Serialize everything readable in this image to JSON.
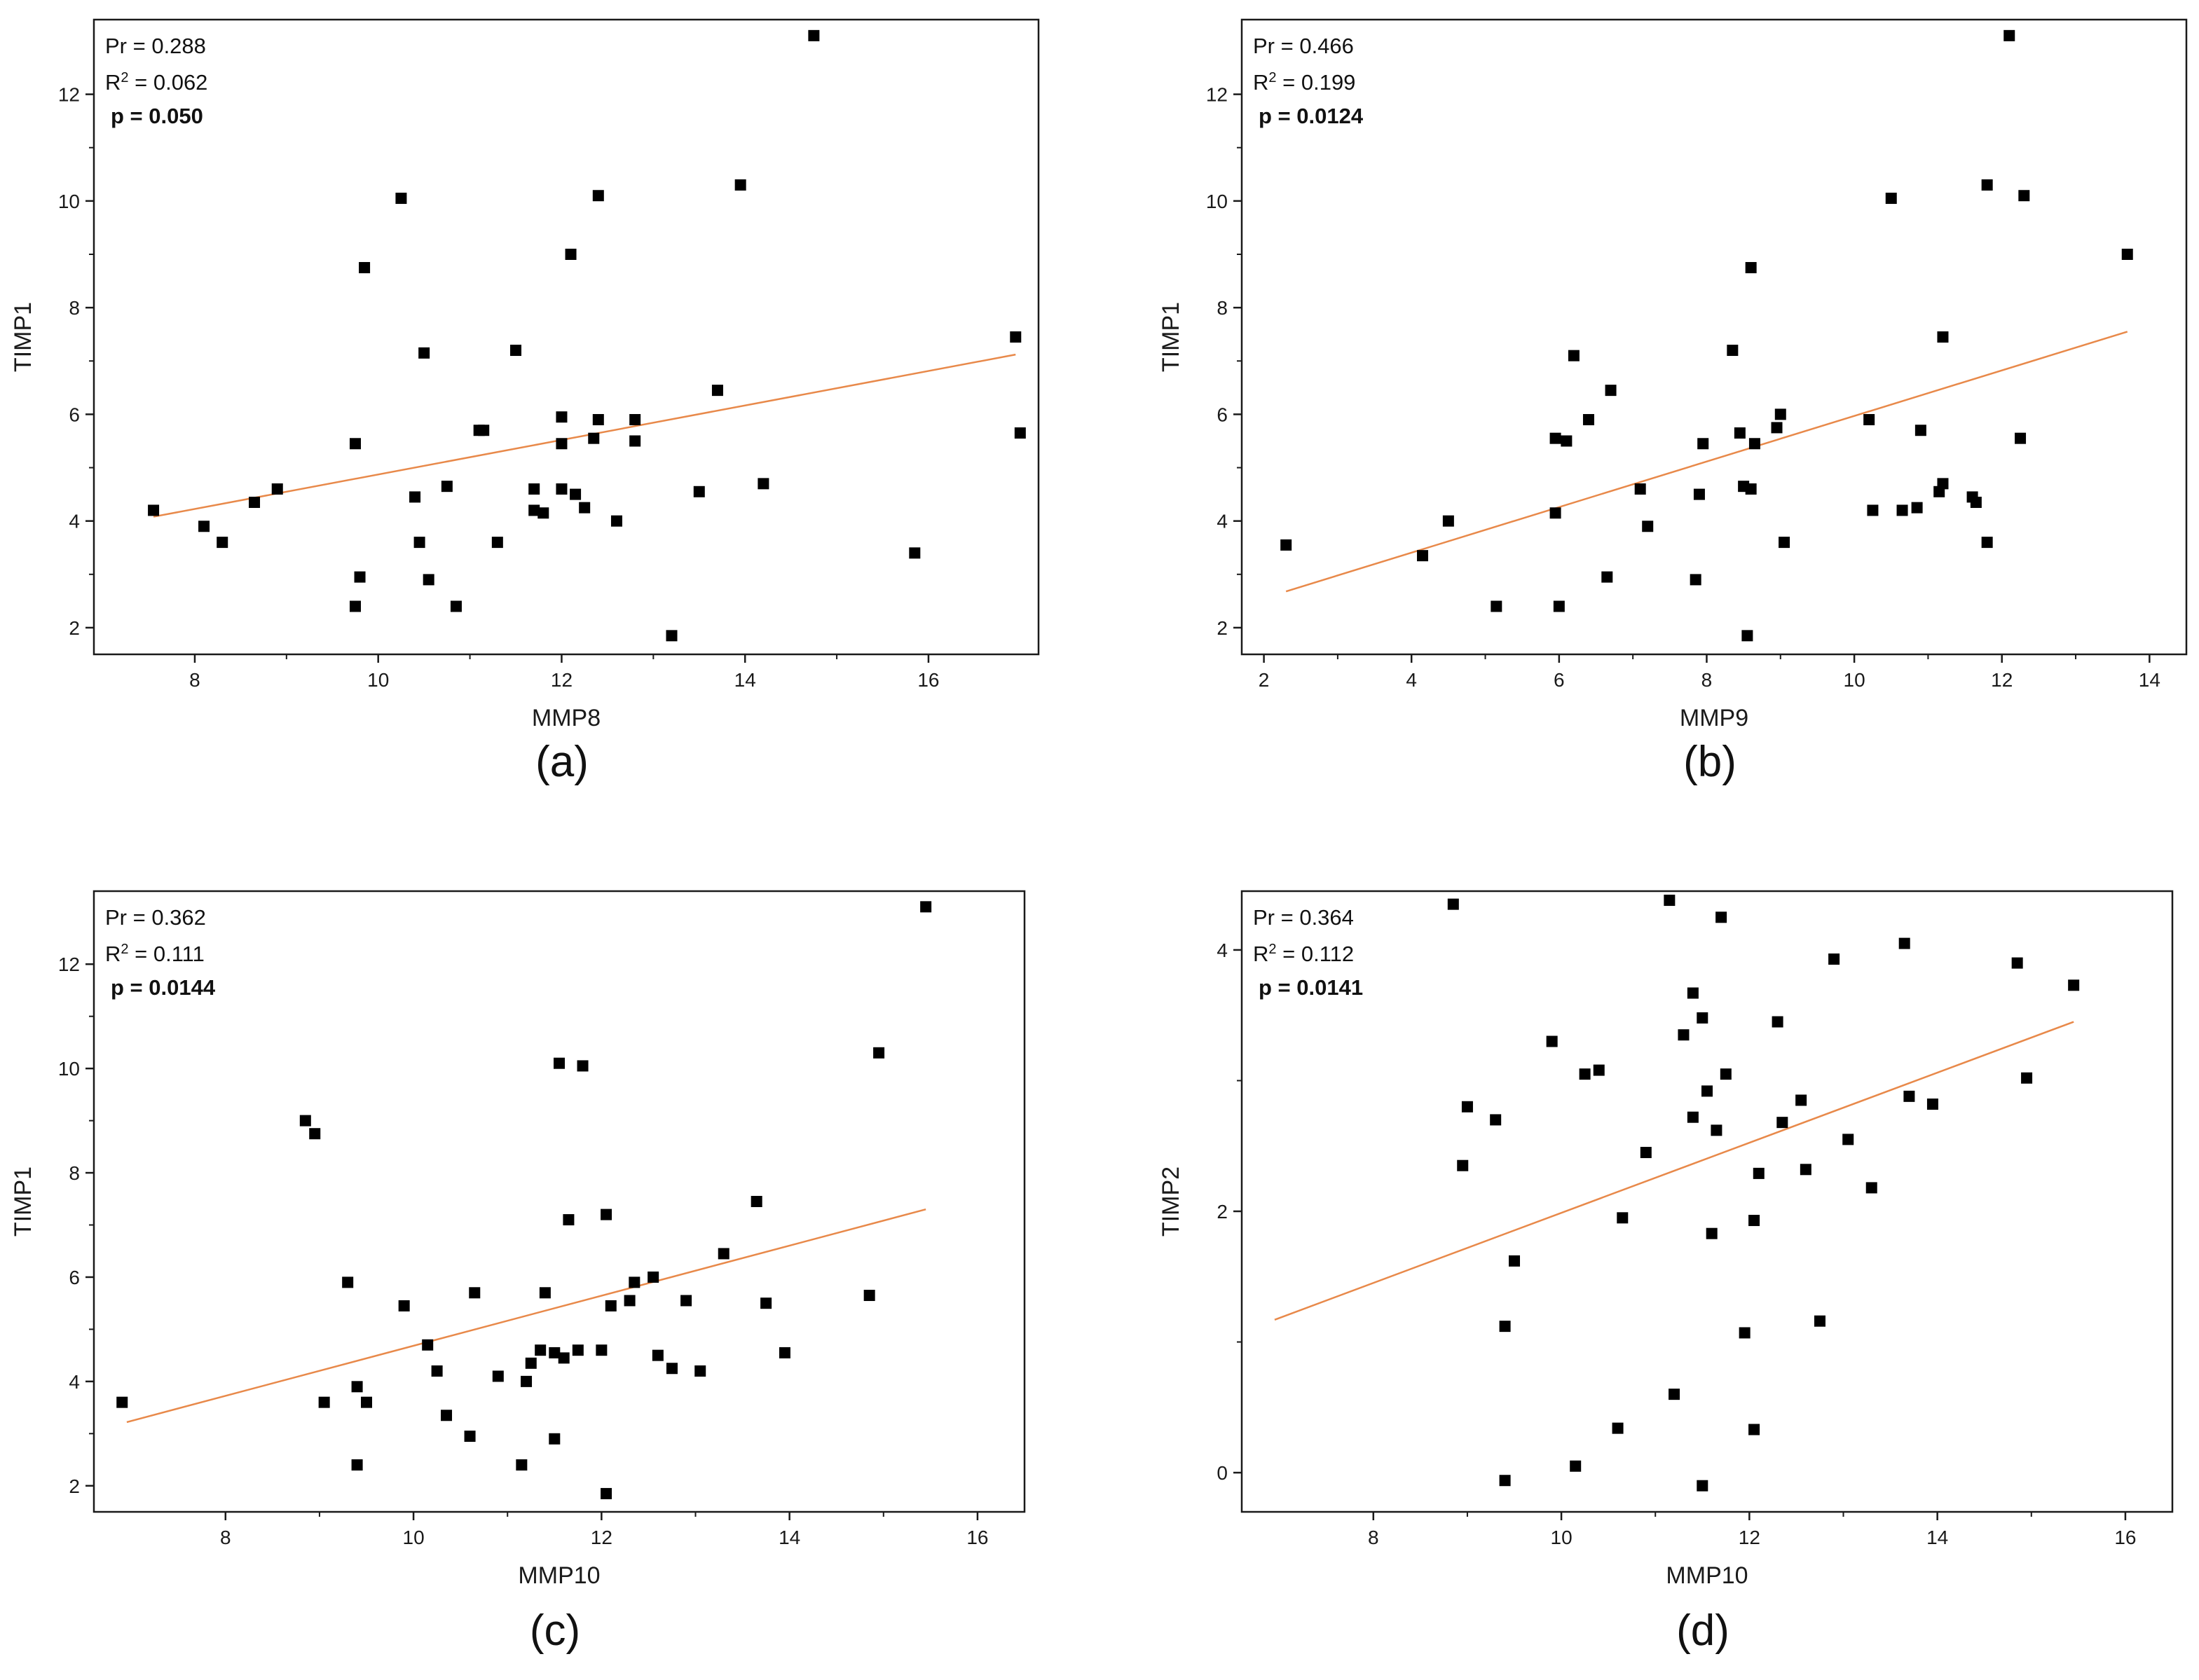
{
  "figure": {
    "colors": {
      "marker": "#000000",
      "fit_line": "#e8894a",
      "axis": "#1a1a1a"
    }
  },
  "chart_data": [
    {
      "id": "a",
      "type": "scatter",
      "panel_label": "(a)",
      "xlabel": "MMP8",
      "ylabel": "TIMP1",
      "xlim": [
        6.9,
        17.2
      ],
      "ylim": [
        1.5,
        13.4
      ],
      "xticks": [
        8,
        10,
        12,
        14,
        16
      ],
      "yticks": [
        2,
        4,
        6,
        8,
        10,
        12
      ],
      "stats": {
        "pr": "Pr = 0.288",
        "r2_prefix": "R",
        "r2_sup": "2",
        "r2_value": " = 0.062",
        "p": "p = 0.050"
      },
      "fit": {
        "x": [
          7.55,
          16.95
        ],
        "y": [
          4.08,
          7.12
        ]
      },
      "points": [
        [
          7.55,
          4.2
        ],
        [
          8.1,
          3.9
        ],
        [
          8.3,
          3.6
        ],
        [
          8.65,
          4.35
        ],
        [
          8.9,
          4.6
        ],
        [
          9.75,
          2.4
        ],
        [
          9.75,
          5.45
        ],
        [
          9.8,
          2.95
        ],
        [
          9.85,
          8.75
        ],
        [
          10.25,
          10.05
        ],
        [
          10.4,
          4.45
        ],
        [
          10.45,
          3.6
        ],
        [
          10.5,
          7.15
        ],
        [
          10.55,
          2.9
        ],
        [
          10.75,
          4.65
        ],
        [
          10.85,
          2.4
        ],
        [
          11.1,
          5.7
        ],
        [
          11.15,
          5.7
        ],
        [
          11.3,
          3.6
        ],
        [
          11.5,
          7.2
        ],
        [
          11.7,
          4.6
        ],
        [
          11.7,
          4.2
        ],
        [
          11.8,
          4.15
        ],
        [
          12.0,
          5.95
        ],
        [
          12.0,
          4.6
        ],
        [
          12.0,
          5.45
        ],
        [
          12.1,
          9.0
        ],
        [
          12.15,
          4.5
        ],
        [
          12.25,
          4.25
        ],
        [
          12.35,
          5.55
        ],
        [
          12.4,
          5.9
        ],
        [
          12.4,
          10.1
        ],
        [
          12.6,
          4.0
        ],
        [
          12.8,
          5.9
        ],
        [
          12.8,
          5.5
        ],
        [
          13.2,
          1.85
        ],
        [
          13.5,
          4.55
        ],
        [
          13.7,
          6.45
        ],
        [
          13.95,
          10.3
        ],
        [
          14.2,
          4.7
        ],
        [
          14.75,
          13.1
        ],
        [
          15.85,
          3.4
        ],
        [
          16.95,
          7.45
        ],
        [
          17.0,
          5.65
        ]
      ]
    },
    {
      "id": "b",
      "type": "scatter",
      "panel_label": "(b)",
      "xlabel": "MMP9",
      "ylabel": "TIMP1",
      "xlim": [
        1.7,
        14.5
      ],
      "ylim": [
        1.5,
        13.4
      ],
      "xticks": [
        2,
        4,
        6,
        8,
        10,
        12,
        14
      ],
      "yticks": [
        2,
        4,
        6,
        8,
        10,
        12
      ],
      "stats": {
        "pr": "Pr = 0.466",
        "r2_prefix": "R",
        "r2_sup": "2",
        "r2_value": " = 0.199",
        "p": "p = 0.0124"
      },
      "fit": {
        "x": [
          2.3,
          13.7
        ],
        "y": [
          2.68,
          7.55
        ]
      },
      "points": [
        [
          2.3,
          3.55
        ],
        [
          4.15,
          3.35
        ],
        [
          4.5,
          4.0
        ],
        [
          5.15,
          2.4
        ],
        [
          5.95,
          4.15
        ],
        [
          5.95,
          5.55
        ],
        [
          6.0,
          2.4
        ],
        [
          6.1,
          5.5
        ],
        [
          6.2,
          7.1
        ],
        [
          6.4,
          5.9
        ],
        [
          6.65,
          2.95
        ],
        [
          6.7,
          6.45
        ],
        [
          7.1,
          4.6
        ],
        [
          7.2,
          3.9
        ],
        [
          7.85,
          2.9
        ],
        [
          7.9,
          4.5
        ],
        [
          7.95,
          5.45
        ],
        [
          8.35,
          7.2
        ],
        [
          8.45,
          5.65
        ],
        [
          8.5,
          4.65
        ],
        [
          8.55,
          1.85
        ],
        [
          8.6,
          8.75
        ],
        [
          8.6,
          4.6
        ],
        [
          8.65,
          5.45
        ],
        [
          8.95,
          5.75
        ],
        [
          9.0,
          6.0
        ],
        [
          9.05,
          3.6
        ],
        [
          10.2,
          5.9
        ],
        [
          10.25,
          4.2
        ],
        [
          10.5,
          10.05
        ],
        [
          10.65,
          4.2
        ],
        [
          10.85,
          4.25
        ],
        [
          10.9,
          5.7
        ],
        [
          11.15,
          4.55
        ],
        [
          11.2,
          4.7
        ],
        [
          11.2,
          7.45
        ],
        [
          11.6,
          4.45
        ],
        [
          11.65,
          4.35
        ],
        [
          11.8,
          3.6
        ],
        [
          11.8,
          10.3
        ],
        [
          12.1,
          13.1
        ],
        [
          12.25,
          5.55
        ],
        [
          12.3,
          10.1
        ],
        [
          13.7,
          9.0
        ]
      ]
    },
    {
      "id": "c",
      "type": "scatter",
      "panel_label": "(c)",
      "xlabel": "MMP10",
      "ylabel": "TIMP1",
      "xlim": [
        6.6,
        16.5
      ],
      "ylim": [
        1.5,
        13.4
      ],
      "xticks": [
        8,
        10,
        12,
        14,
        16
      ],
      "yticks": [
        2,
        4,
        6,
        8,
        10,
        12
      ],
      "stats": {
        "pr": "Pr = 0.362",
        "r2_prefix": "R",
        "r2_sup": "2",
        "r2_value": " = 0.111",
        "p": "p = 0.0144"
      },
      "fit": {
        "x": [
          6.95,
          15.45
        ],
        "y": [
          3.22,
          7.3
        ]
      },
      "points": [
        [
          6.9,
          3.6
        ],
        [
          8.85,
          9.0
        ],
        [
          8.95,
          8.75
        ],
        [
          9.05,
          3.6
        ],
        [
          9.3,
          5.9
        ],
        [
          9.4,
          3.9
        ],
        [
          9.4,
          2.4
        ],
        [
          9.5,
          3.6
        ],
        [
          9.9,
          5.45
        ],
        [
          10.15,
          4.7
        ],
        [
          10.25,
          4.2
        ],
        [
          10.35,
          3.35
        ],
        [
          10.6,
          2.95
        ],
        [
          10.65,
          5.7
        ],
        [
          10.9,
          4.1
        ],
        [
          11.15,
          2.4
        ],
        [
          11.2,
          4.0
        ],
        [
          11.25,
          4.35
        ],
        [
          11.35,
          4.6
        ],
        [
          11.4,
          5.7
        ],
        [
          11.5,
          2.9
        ],
        [
          11.5,
          4.55
        ],
        [
          11.55,
          10.1
        ],
        [
          11.6,
          4.45
        ],
        [
          11.65,
          7.1
        ],
        [
          11.75,
          4.6
        ],
        [
          11.8,
          10.05
        ],
        [
          12.0,
          4.6
        ],
        [
          12.05,
          7.2
        ],
        [
          12.05,
          1.85
        ],
        [
          12.1,
          5.45
        ],
        [
          12.3,
          5.55
        ],
        [
          12.35,
          5.9
        ],
        [
          12.55,
          6.0
        ],
        [
          12.6,
          4.5
        ],
        [
          12.75,
          4.25
        ],
        [
          12.9,
          5.55
        ],
        [
          13.05,
          4.2
        ],
        [
          13.3,
          6.45
        ],
        [
          13.65,
          7.45
        ],
        [
          13.75,
          5.5
        ],
        [
          13.95,
          4.55
        ],
        [
          14.85,
          5.65
        ],
        [
          14.95,
          10.3
        ],
        [
          15.45,
          13.1
        ]
      ]
    },
    {
      "id": "d",
      "type": "scatter",
      "panel_label": "(d)",
      "xlabel": "MMP10",
      "ylabel": "TIMP2",
      "xlim": [
        6.6,
        16.5
      ],
      "ylim": [
        -0.3,
        4.45
      ],
      "xticks": [
        8,
        10,
        12,
        14,
        16
      ],
      "yticks": [
        0,
        2,
        4
      ],
      "stats": {
        "pr": "Pr = 0.364",
        "r2_prefix": "R",
        "r2_sup": "2",
        "r2_value": " = 0.112",
        "p": "p = 0.0141"
      },
      "fit": {
        "x": [
          6.95,
          15.45
        ],
        "y": [
          1.17,
          3.45
        ]
      },
      "points": [
        [
          8.85,
          4.35
        ],
        [
          8.95,
          2.35
        ],
        [
          9.0,
          2.8
        ],
        [
          9.3,
          2.7
        ],
        [
          9.4,
          1.12
        ],
        [
          9.4,
          -0.06
        ],
        [
          9.5,
          1.62
        ],
        [
          9.9,
          3.3
        ],
        [
          10.15,
          0.05
        ],
        [
          10.25,
          3.05
        ],
        [
          10.4,
          3.08
        ],
        [
          10.6,
          0.34
        ],
        [
          10.65,
          1.95
        ],
        [
          10.9,
          2.45
        ],
        [
          11.15,
          4.38
        ],
        [
          11.2,
          0.6
        ],
        [
          11.3,
          3.35
        ],
        [
          11.4,
          3.67
        ],
        [
          11.4,
          2.72
        ],
        [
          11.5,
          3.48
        ],
        [
          11.5,
          -0.1
        ],
        [
          11.55,
          2.92
        ],
        [
          11.6,
          1.83
        ],
        [
          11.65,
          2.62
        ],
        [
          11.7,
          4.25
        ],
        [
          11.75,
          3.05
        ],
        [
          11.95,
          1.07
        ],
        [
          12.05,
          1.93
        ],
        [
          12.05,
          0.33
        ],
        [
          12.1,
          2.29
        ],
        [
          12.3,
          3.45
        ],
        [
          12.35,
          2.68
        ],
        [
          12.55,
          2.85
        ],
        [
          12.6,
          2.32
        ],
        [
          12.75,
          1.16
        ],
        [
          12.9,
          3.93
        ],
        [
          13.05,
          2.55
        ],
        [
          13.3,
          2.18
        ],
        [
          13.65,
          4.05
        ],
        [
          13.7,
          2.88
        ],
        [
          13.95,
          2.82
        ],
        [
          14.85,
          3.9
        ],
        [
          14.95,
          3.02
        ],
        [
          15.45,
          3.73
        ]
      ]
    }
  ]
}
